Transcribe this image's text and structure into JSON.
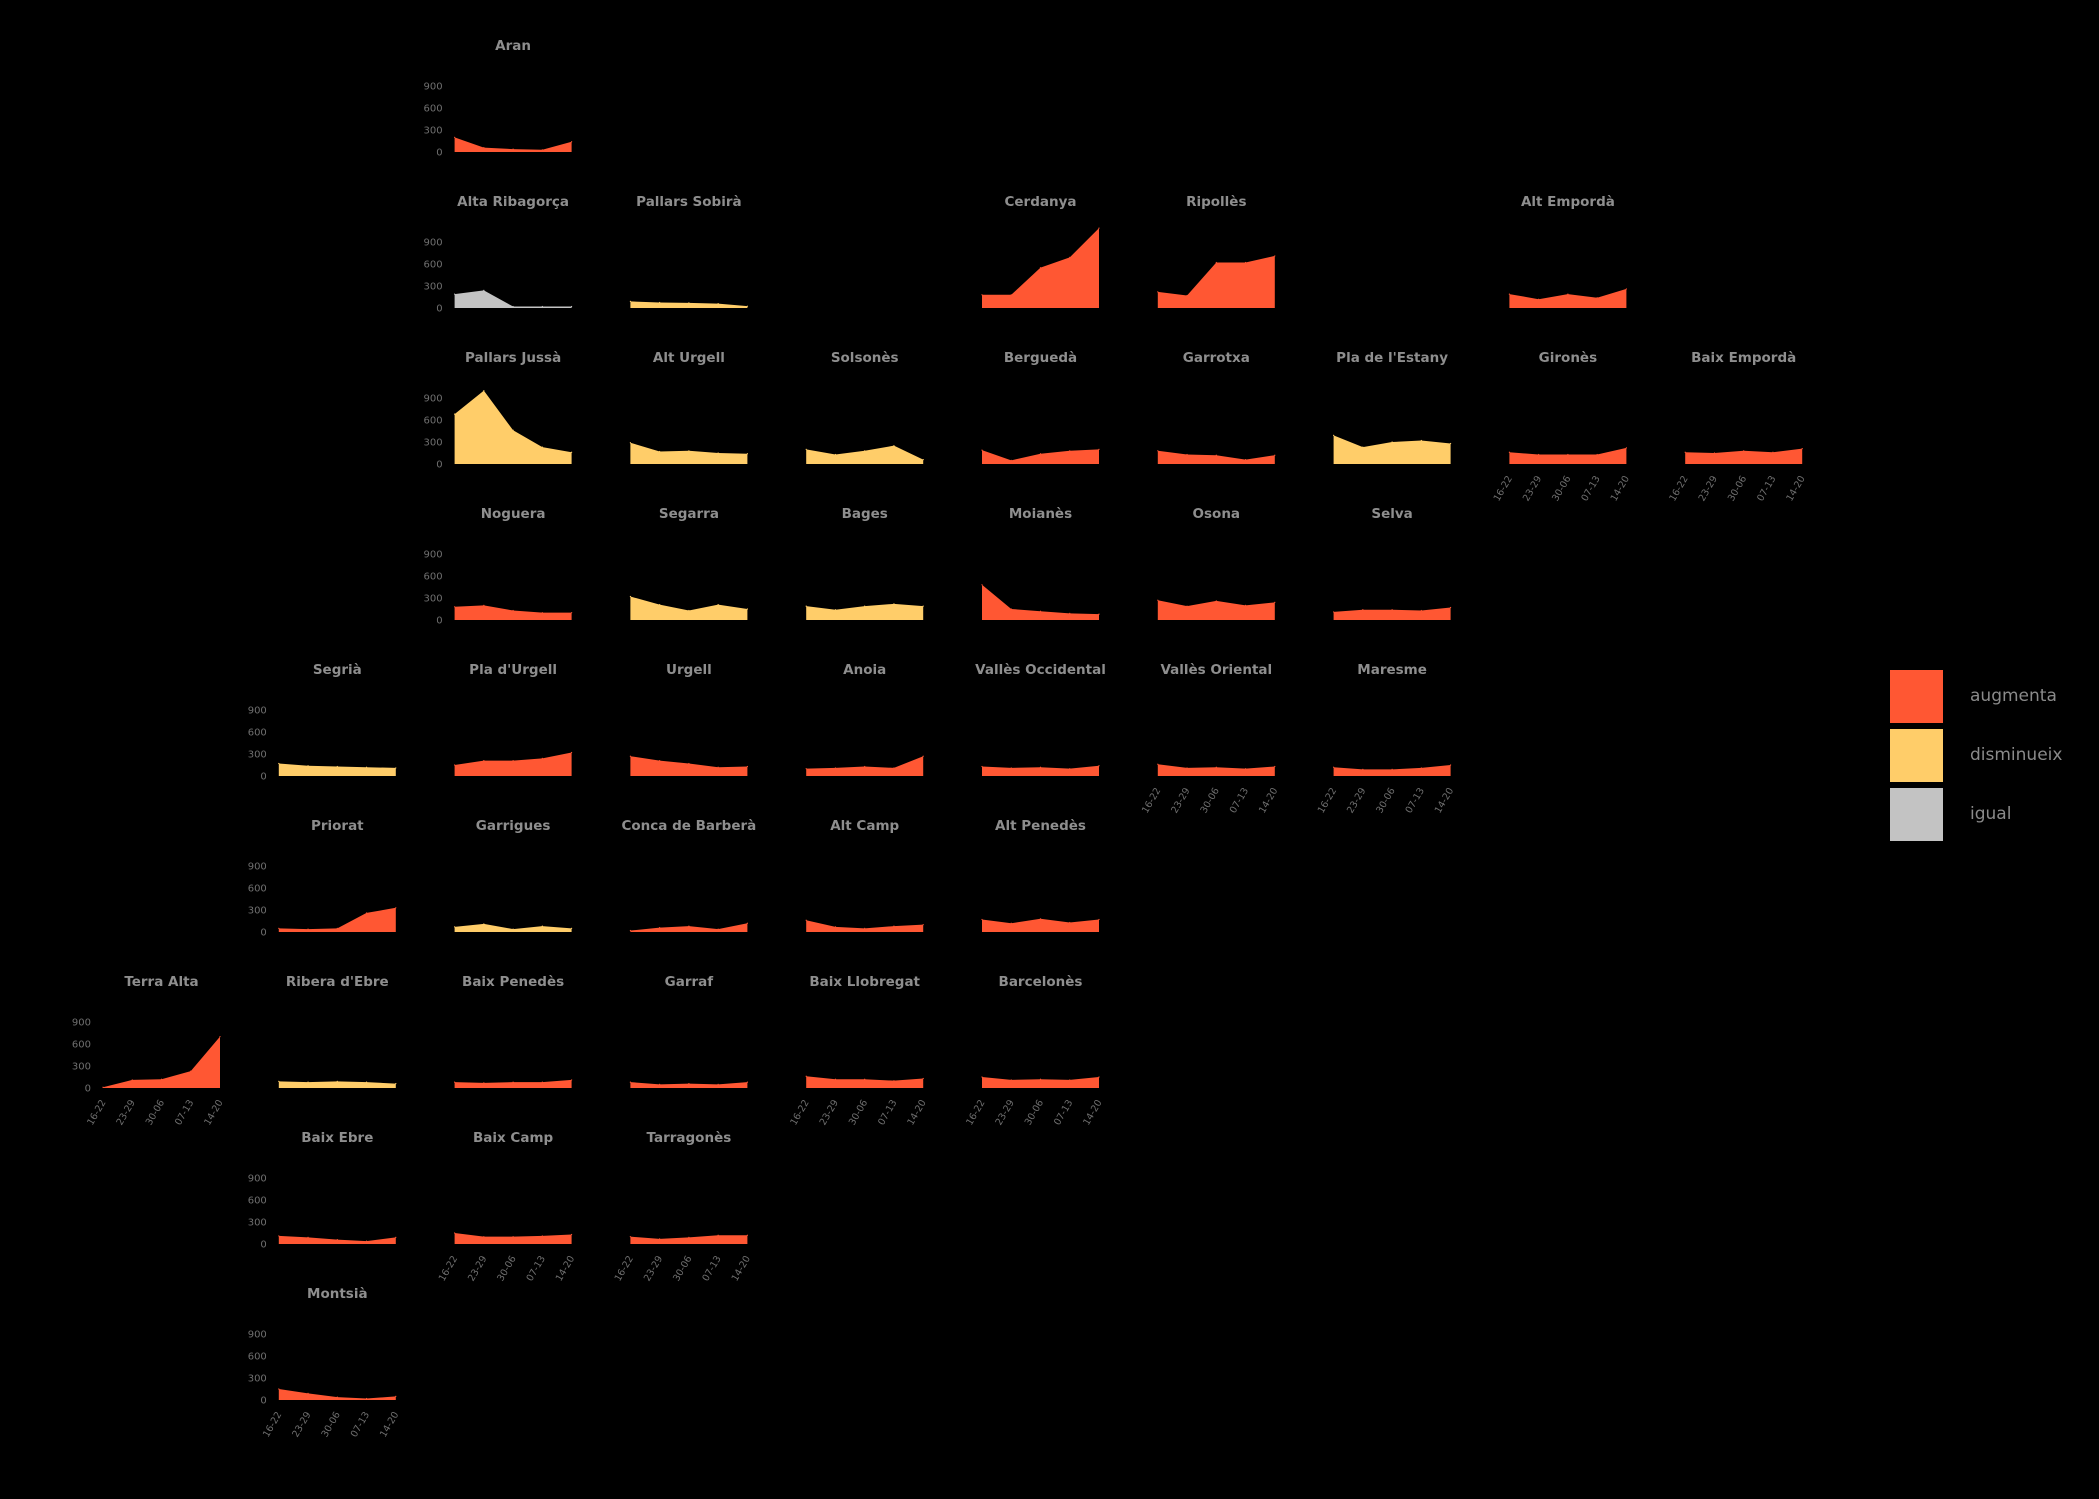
{
  "colors": {
    "augmenta": "#FF5733",
    "disminueix": "#FFCD69",
    "igual": "#C3C3C3"
  },
  "legend": [
    {
      "key": "augmenta",
      "label": "augmenta",
      "color": "#FF5733"
    },
    {
      "key": "disminueix",
      "label": "disminueix",
      "color": "#FFCD69"
    },
    {
      "key": "igual",
      "label": "igual",
      "color": "#C3C3C3"
    }
  ],
  "chart_data": {
    "type": "area",
    "x": [
      "16-22",
      "23-29",
      "30-06",
      "07-13",
      "14-20"
    ],
    "ylim": [
      0,
      1050
    ],
    "yticks": [
      0,
      300,
      600,
      900
    ],
    "panels": [
      {
        "name": "Aran",
        "row": 0,
        "col": 2,
        "status": "augmenta",
        "y_axis": true,
        "x_axis": false,
        "values": [
          200,
          60,
          40,
          30,
          140
        ]
      },
      {
        "name": "Alta Ribagorça",
        "row": 1,
        "col": 2,
        "status": "igual",
        "y_axis": true,
        "x_axis": false,
        "values": [
          190,
          240,
          20,
          20,
          20
        ]
      },
      {
        "name": "Pallars Sobirà",
        "row": 1,
        "col": 3,
        "status": "disminueix",
        "y_axis": false,
        "x_axis": false,
        "values": [
          90,
          75,
          70,
          60,
          25
        ]
      },
      {
        "name": "Cerdanya",
        "row": 1,
        "col": 5,
        "status": "augmenta",
        "y_axis": false,
        "x_axis": false,
        "values": [
          180,
          180,
          550,
          690,
          1090
        ]
      },
      {
        "name": "Ripollès",
        "row": 1,
        "col": 6,
        "status": "augmenta",
        "y_axis": false,
        "x_axis": false,
        "values": [
          220,
          170,
          620,
          620,
          710
        ]
      },
      {
        "name": "Alt Empordà",
        "row": 1,
        "col": 8,
        "status": "augmenta",
        "y_axis": false,
        "x_axis": false,
        "values": [
          190,
          120,
          190,
          140,
          260
        ]
      },
      {
        "name": "Pallars Jussà",
        "row": 2,
        "col": 2,
        "status": "disminueix",
        "y_axis": true,
        "x_axis": false,
        "values": [
          680,
          1000,
          460,
          230,
          160
        ]
      },
      {
        "name": "Alt Urgell",
        "row": 2,
        "col": 3,
        "status": "disminueix",
        "y_axis": false,
        "x_axis": false,
        "values": [
          290,
          170,
          180,
          150,
          140
        ]
      },
      {
        "name": "Solsonès",
        "row": 2,
        "col": 4,
        "status": "disminueix",
        "y_axis": false,
        "x_axis": false,
        "values": [
          200,
          130,
          180,
          250,
          60
        ]
      },
      {
        "name": "Berguedà",
        "row": 2,
        "col": 5,
        "status": "augmenta",
        "y_axis": false,
        "x_axis": false,
        "values": [
          190,
          50,
          140,
          180,
          200
        ]
      },
      {
        "name": "Garrotxa",
        "row": 2,
        "col": 6,
        "status": "augmenta",
        "y_axis": false,
        "x_axis": false,
        "values": [
          180,
          130,
          120,
          60,
          120
        ]
      },
      {
        "name": "Pla de l'Estany",
        "row": 2,
        "col": 7,
        "status": "disminueix",
        "y_axis": false,
        "x_axis": false,
        "values": [
          390,
          230,
          300,
          320,
          280
        ]
      },
      {
        "name": "Gironès",
        "row": 2,
        "col": 8,
        "status": "augmenta",
        "y_axis": false,
        "x_axis": true,
        "values": [
          160,
          130,
          130,
          130,
          220
        ]
      },
      {
        "name": "Baix Empordà",
        "row": 2,
        "col": 9,
        "status": "augmenta",
        "y_axis": false,
        "x_axis": true,
        "values": [
          160,
          150,
          180,
          160,
          210
        ]
      },
      {
        "name": "Noguera",
        "row": 3,
        "col": 2,
        "status": "augmenta",
        "y_axis": true,
        "x_axis": false,
        "values": [
          180,
          200,
          130,
          100,
          100
        ]
      },
      {
        "name": "Segarra",
        "row": 3,
        "col": 3,
        "status": "disminueix",
        "y_axis": false,
        "x_axis": false,
        "values": [
          320,
          210,
          130,
          210,
          150
        ]
      },
      {
        "name": "Bages",
        "row": 3,
        "col": 4,
        "status": "disminueix",
        "y_axis": false,
        "x_axis": false,
        "values": [
          190,
          140,
          190,
          220,
          190
        ]
      },
      {
        "name": "Moianès",
        "row": 3,
        "col": 5,
        "status": "augmenta",
        "y_axis": false,
        "x_axis": false,
        "values": [
          480,
          150,
          120,
          90,
          80
        ]
      },
      {
        "name": "Osona",
        "row": 3,
        "col": 6,
        "status": "augmenta",
        "y_axis": false,
        "x_axis": false,
        "values": [
          270,
          190,
          260,
          200,
          240
        ]
      },
      {
        "name": "Selva",
        "row": 3,
        "col": 7,
        "status": "augmenta",
        "y_axis": false,
        "x_axis": false,
        "values": [
          110,
          140,
          140,
          130,
          170
        ]
      },
      {
        "name": "Segrià",
        "row": 4,
        "col": 1,
        "status": "disminueix",
        "y_axis": true,
        "x_axis": false,
        "values": [
          170,
          140,
          130,
          120,
          110
        ]
      },
      {
        "name": "Pla d'Urgell",
        "row": 4,
        "col": 2,
        "status": "augmenta",
        "y_axis": false,
        "x_axis": false,
        "values": [
          150,
          210,
          210,
          240,
          320
        ]
      },
      {
        "name": "Urgell",
        "row": 4,
        "col": 3,
        "status": "augmenta",
        "y_axis": false,
        "x_axis": false,
        "values": [
          270,
          210,
          170,
          120,
          130
        ]
      },
      {
        "name": "Anoia",
        "row": 4,
        "col": 4,
        "status": "augmenta",
        "y_axis": false,
        "x_axis": false,
        "values": [
          100,
          110,
          130,
          110,
          270
        ]
      },
      {
        "name": "Vallès Occidental",
        "row": 4,
        "col": 5,
        "status": "augmenta",
        "y_axis": false,
        "x_axis": false,
        "values": [
          130,
          110,
          120,
          100,
          140
        ]
      },
      {
        "name": "Vallès Oriental",
        "row": 4,
        "col": 6,
        "status": "augmenta",
        "y_axis": false,
        "x_axis": true,
        "values": [
          160,
          110,
          120,
          100,
          130
        ]
      },
      {
        "name": "Maresme",
        "row": 4,
        "col": 7,
        "status": "augmenta",
        "y_axis": false,
        "x_axis": true,
        "values": [
          120,
          90,
          90,
          110,
          150
        ]
      },
      {
        "name": "Priorat",
        "row": 5,
        "col": 1,
        "status": "augmenta",
        "y_axis": true,
        "x_axis": false,
        "values": [
          50,
          40,
          50,
          260,
          330
        ]
      },
      {
        "name": "Garrigues",
        "row": 5,
        "col": 2,
        "status": "disminueix",
        "y_axis": false,
        "x_axis": false,
        "values": [
          70,
          110,
          40,
          80,
          50
        ]
      },
      {
        "name": "Conca de Barberà",
        "row": 5,
        "col": 3,
        "status": "augmenta",
        "y_axis": false,
        "x_axis": false,
        "values": [
          20,
          60,
          80,
          40,
          120
        ]
      },
      {
        "name": "Alt Camp",
        "row": 5,
        "col": 4,
        "status": "augmenta",
        "y_axis": false,
        "x_axis": false,
        "values": [
          160,
          70,
          50,
          80,
          100
        ]
      },
      {
        "name": "Alt Penedès",
        "row": 5,
        "col": 5,
        "status": "augmenta",
        "y_axis": false,
        "x_axis": false,
        "values": [
          170,
          120,
          180,
          130,
          170
        ]
      },
      {
        "name": "Terra Alta",
        "row": 6,
        "col": 0,
        "status": "augmenta",
        "y_axis": true,
        "x_axis": true,
        "values": [
          10,
          110,
          120,
          230,
          700
        ]
      },
      {
        "name": "Ribera d'Ebre",
        "row": 6,
        "col": 1,
        "status": "disminueix",
        "y_axis": false,
        "x_axis": false,
        "values": [
          90,
          80,
          90,
          80,
          60
        ]
      },
      {
        "name": "Baix Penedès",
        "row": 6,
        "col": 2,
        "status": "augmenta",
        "y_axis": false,
        "x_axis": false,
        "values": [
          80,
          70,
          80,
          80,
          110
        ]
      },
      {
        "name": "Garraf",
        "row": 6,
        "col": 3,
        "status": "augmenta",
        "y_axis": false,
        "x_axis": false,
        "values": [
          80,
          50,
          60,
          50,
          80
        ]
      },
      {
        "name": "Baix Llobregat",
        "row": 6,
        "col": 4,
        "status": "augmenta",
        "y_axis": false,
        "x_axis": true,
        "values": [
          160,
          120,
          120,
          100,
          130
        ]
      },
      {
        "name": "Barcelonès",
        "row": 6,
        "col": 5,
        "status": "augmenta",
        "y_axis": false,
        "x_axis": true,
        "values": [
          150,
          110,
          120,
          110,
          150
        ]
      },
      {
        "name": "Baix Ebre",
        "row": 7,
        "col": 1,
        "status": "augmenta",
        "y_axis": true,
        "x_axis": false,
        "values": [
          110,
          90,
          60,
          40,
          90
        ]
      },
      {
        "name": "Baix Camp",
        "row": 7,
        "col": 2,
        "status": "augmenta",
        "y_axis": false,
        "x_axis": true,
        "values": [
          150,
          100,
          100,
          110,
          130
        ]
      },
      {
        "name": "Tarragonès",
        "row": 7,
        "col": 3,
        "status": "augmenta",
        "y_axis": false,
        "x_axis": true,
        "values": [
          100,
          70,
          90,
          120,
          120
        ]
      },
      {
        "name": "Montsià",
        "row": 8,
        "col": 1,
        "status": "augmenta",
        "y_axis": true,
        "x_axis": true,
        "values": [
          150,
          90,
          40,
          20,
          50
        ]
      }
    ]
  }
}
